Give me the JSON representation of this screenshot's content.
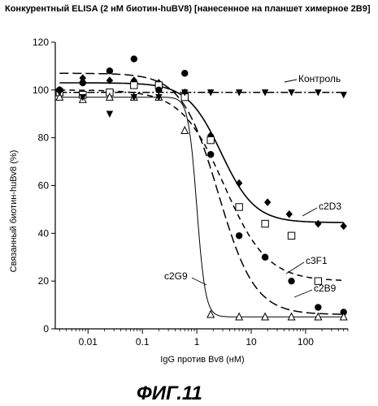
{
  "chart_data": {
    "type": "scatter",
    "title": "Конкурентный ELISA (2 нМ биотин-huBV8) [нанесенное на планшет химерное 2B9]",
    "xlabel": "IgG против Bv8 (нМ)",
    "ylabel": "Связанный биотин-huBv8 (%)",
    "x_scale": "log",
    "xlim": [
      0.0025,
      600
    ],
    "ylim": [
      0,
      120
    ],
    "x_ticks": [
      0.01,
      0.1,
      1,
      10,
      100
    ],
    "x_tick_labels": [
      "0.01",
      "0.1",
      "1",
      "10",
      "100"
    ],
    "y_ticks": [
      0,
      20,
      40,
      60,
      80,
      100,
      120
    ],
    "y_tick_labels": [
      "0",
      "20",
      "40",
      "60",
      "80",
      "100",
      "120"
    ],
    "grid": false,
    "legend": "none",
    "figure_caption": "ФИГ.11",
    "series": [
      {
        "name": "c2D3",
        "marker": "diamond",
        "line": "solid",
        "x": [
          0.003,
          0.008,
          0.025,
          0.07,
          0.2,
          0.6,
          1.8,
          6,
          20,
          50,
          170,
          500
        ],
        "y": [
          100,
          105,
          104,
          104,
          103,
          99,
          81,
          61,
          53,
          48,
          44,
          43
        ],
        "fit": {
          "top": 103,
          "bottom": 44.5,
          "ec50": 2.8,
          "hill": 1.4
        }
      },
      {
        "name": "c3F1",
        "marker": "square",
        "line": "dashed",
        "x": [
          0.003,
          0.008,
          0.025,
          0.07,
          0.2,
          0.6,
          1.8,
          6,
          18,
          55,
          170
        ],
        "y": [
          99,
          98,
          99,
          102,
          102,
          97,
          79,
          51,
          44,
          39,
          20
        ],
        "fit": {
          "top": 100,
          "bottom": 20,
          "ec50": 3.2,
          "hill": 1.1
        }
      },
      {
        "name": "c2B9",
        "marker": "circle",
        "line": "long-dashed",
        "x": [
          0.003,
          0.008,
          0.025,
          0.07,
          0.2,
          0.6,
          1.8,
          6,
          18,
          55,
          170,
          500
        ],
        "y": [
          100,
          103,
          108,
          113,
          100,
          107,
          73,
          39,
          30,
          20,
          9,
          7
        ],
        "fit": {
          "top": 107,
          "bottom": 6,
          "ec50": 2.5,
          "hill": 1.3
        }
      },
      {
        "name": "c2G9",
        "marker": "triangle-up",
        "line": "solid-thin",
        "x": [
          0.003,
          0.008,
          0.025,
          0.07,
          0.2,
          0.6,
          1.8,
          6,
          18,
          55,
          170,
          500
        ],
        "y": [
          97,
          96,
          97,
          97,
          97,
          83,
          6,
          5,
          5,
          5,
          5,
          5
        ],
        "fit": {
          "top": 97,
          "bottom": 5,
          "ec50": 1.0,
          "hill": 5.5
        }
      },
      {
        "name": "Контроль",
        "marker": "triangle-down",
        "line": "dash-dot",
        "x": [
          0.003,
          0.008,
          0.025,
          0.07,
          0.2,
          0.6,
          1.8,
          6,
          18,
          55,
          170,
          500
        ],
        "y": [
          99,
          97,
          90,
          97,
          97,
          99,
          99,
          99,
          99,
          99,
          99,
          98
        ],
        "fit": {
          "top": 99,
          "bottom": 99,
          "ec50": 1.0,
          "hill": 1.0
        }
      }
    ]
  }
}
